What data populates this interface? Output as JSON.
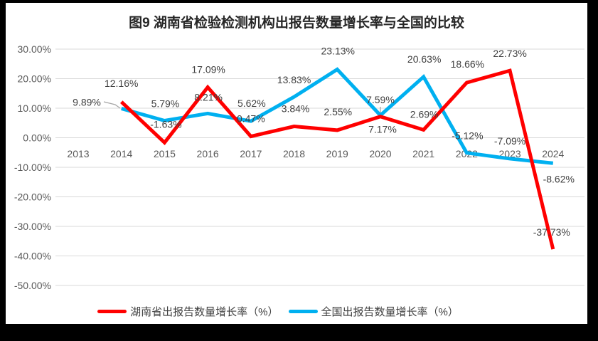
{
  "title": "图9 湖南省检验检测机构出报告数量增长率与全国的比较",
  "colors": {
    "hunan_line": "#FF0000",
    "national_line": "#00B0F0",
    "gridline": "#D9D9D9",
    "axis_text": "#595959",
    "data_label_text": "#404040",
    "leader_line": "#A6A6A6",
    "panel_background": "#FFFFFF",
    "frame_background": "#000000"
  },
  "chart_data": {
    "type": "line",
    "title": "图9 湖南省检验检测机构出报告数量增长率与全国的比较",
    "xlabel": "",
    "ylabel": "",
    "categories": [
      "2013",
      "2014",
      "2015",
      "2016",
      "2017",
      "2018",
      "2019",
      "2020",
      "2021",
      "2022",
      "2023",
      "2024"
    ],
    "series": [
      {
        "name": "湖南省出报告数量增长率（%）",
        "color": "#FF0000",
        "values": [
          null,
          12.16,
          -1.63,
          17.09,
          0.47,
          3.84,
          2.55,
          7.17,
          2.69,
          18.66,
          22.73,
          -37.73
        ],
        "labels": [
          null,
          "12.16%",
          "-1.63%",
          "17.09%",
          "0.47%",
          "3.84%",
          "2.55%",
          "7.17%",
          "2.69%",
          "18.66%",
          "22.73%",
          "-37.73%"
        ],
        "label_offsets": [
          null,
          [
            0,
            -26
          ],
          [
            2,
            -26
          ],
          [
            1,
            -25
          ],
          [
            0,
            -25
          ],
          [
            2,
            -25
          ],
          [
            1,
            -26
          ],
          [
            3,
            18
          ],
          [
            1,
            -22
          ],
          [
            1,
            -26
          ],
          [
            0,
            -24
          ],
          [
            -2,
            -24
          ]
        ]
      },
      {
        "name": "全国出报告数量增长率（%）",
        "color": "#00B0F0",
        "values": [
          null,
          9.89,
          5.79,
          8.21,
          5.62,
          13.83,
          23.13,
          7.59,
          20.63,
          -5.12,
          -7.09,
          -8.62
        ],
        "labels": [
          null,
          "9.89%",
          "5.79%",
          "8.21%",
          "5.62%",
          "13.83%",
          "23.13%",
          "7.59%",
          "20.63%",
          "-5.12%",
          "-7.09%",
          "-8.62%"
        ],
        "label_offsets": [
          null,
          [
            -48.7,
            -9
          ],
          [
            1,
            -24
          ],
          [
            1,
            -23
          ],
          [
            1,
            -25
          ],
          [
            0,
            -24
          ],
          [
            1,
            -26
          ],
          [
            0,
            -22
          ],
          [
            1,
            -25
          ],
          [
            1,
            -24
          ],
          [
            0,
            -25
          ],
          [
            8,
            22
          ]
        ]
      }
    ],
    "ylim": [
      -50,
      30
    ],
    "ytick_labels": [
      "30.00%",
      "20.00%",
      "10.00%",
      "0.00%",
      "-10.00%",
      "-20.00%",
      "-30.00%",
      "-40.00%",
      "-50.00%"
    ],
    "grid": true,
    "legend_position": "bottom",
    "leader_lines": [
      {
        "for": "全国 2014 9.89%",
        "points": [
          [
            138,
            139
          ],
          [
            154,
            143
          ],
          [
            161,
            148
          ]
        ]
      },
      {
        "for": "全国 2020 7.59%",
        "points": [
          [
            527,
            146
          ],
          [
            527,
            158
          ]
        ]
      }
    ]
  }
}
